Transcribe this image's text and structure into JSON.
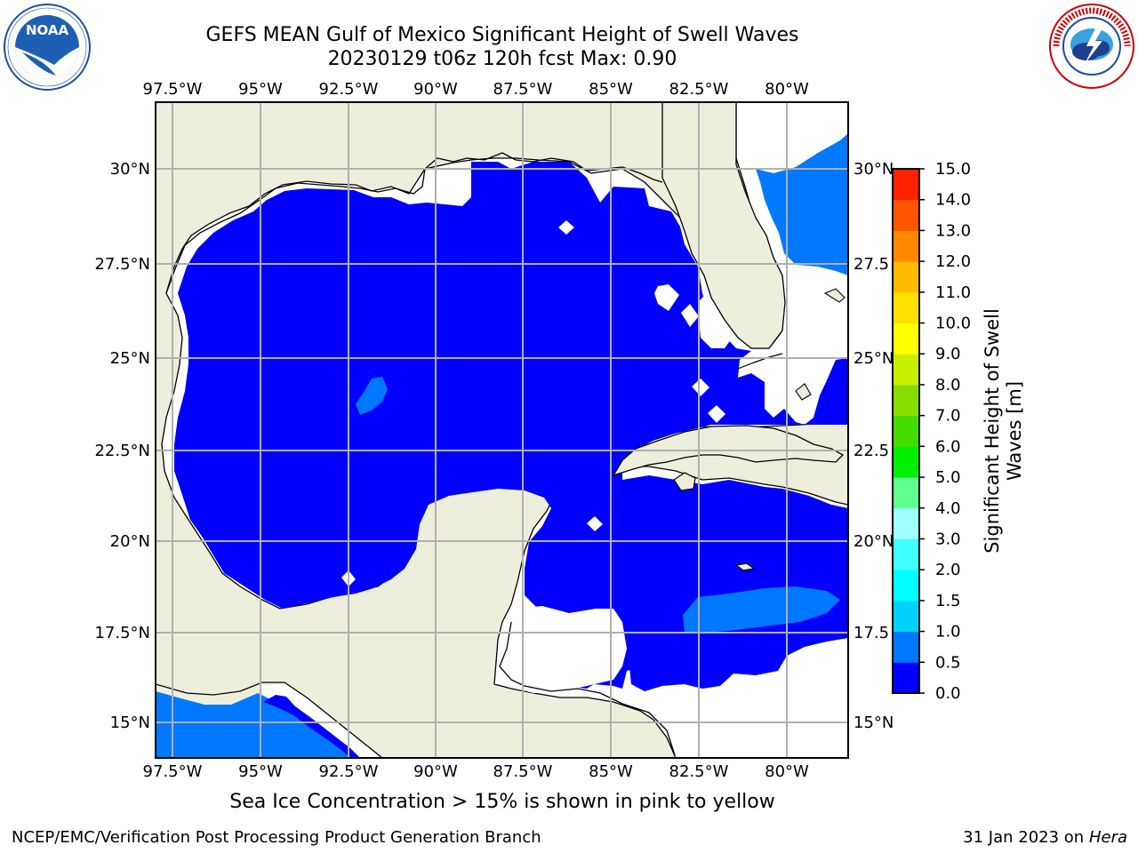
{
  "title_line1": "GEFS MEAN Gulf of Mexico Significant Height of Swell Waves",
  "title_line2": "20230129 t06z 120h fcst   Max: 0.90",
  "logos": {
    "left": "NOAA",
    "left_ring": "NATIONAL OCEANIC AND ATMOSPHERIC ADMINISTRATION",
    "left_ring2": "U.S. DEPARTMENT OF COMMERCE",
    "right_ring": "NATIONAL WEATHER SERVICE"
  },
  "map": {
    "lon_ticks": [
      "97.5°W",
      "95°W",
      "92.5°W",
      "90°W",
      "87.5°W",
      "85°W",
      "82.5°W",
      "80°W"
    ],
    "lat_ticks_left": [
      "30°N",
      "27.5°N",
      "25°N",
      "22.5°N",
      "20°N",
      "17.5°N",
      "15°N"
    ],
    "lat_ticks_right": [
      "30°N",
      "27.5",
      "25°N",
      "22.5",
      "20°N",
      "17.5",
      "15°N"
    ],
    "colors": {
      "land": "#eeeedd",
      "swell_0_0p5": "#0000ff",
      "swell_0p5_1": "#0078ff",
      "grid": "#b0b0b0"
    }
  },
  "colorbar": {
    "label_line1": "Significant Height of Swell",
    "label_line2": "Waves [m]",
    "ticks": [
      "0.0",
      "0.5",
      "1.0",
      "1.5",
      "2.0",
      "3.0",
      "4.0",
      "5.0",
      "6.0",
      "7.0",
      "8.0",
      "9.0",
      "10.0",
      "11.0",
      "12.0",
      "13.0",
      "14.0",
      "15.0"
    ],
    "colors": [
      "#0000ff",
      "#0078ff",
      "#00d2ff",
      "#00ffff",
      "#40ffff",
      "#a0ffff",
      "#60ff90",
      "#00ee00",
      "#44dd00",
      "#88dd00",
      "#c8ee00",
      "#ffff00",
      "#ffe000",
      "#ffbb00",
      "#ff8800",
      "#ff5500",
      "#ff2200",
      "#ff0000"
    ]
  },
  "caption": "Sea Ice Concentration > 15% is shown in pink to yellow",
  "footer_left": "NCEP/EMC/Verification Post Processing Product Generation Branch",
  "footer_right_date": "31 Jan 2023 on ",
  "footer_right_host": "Hera"
}
